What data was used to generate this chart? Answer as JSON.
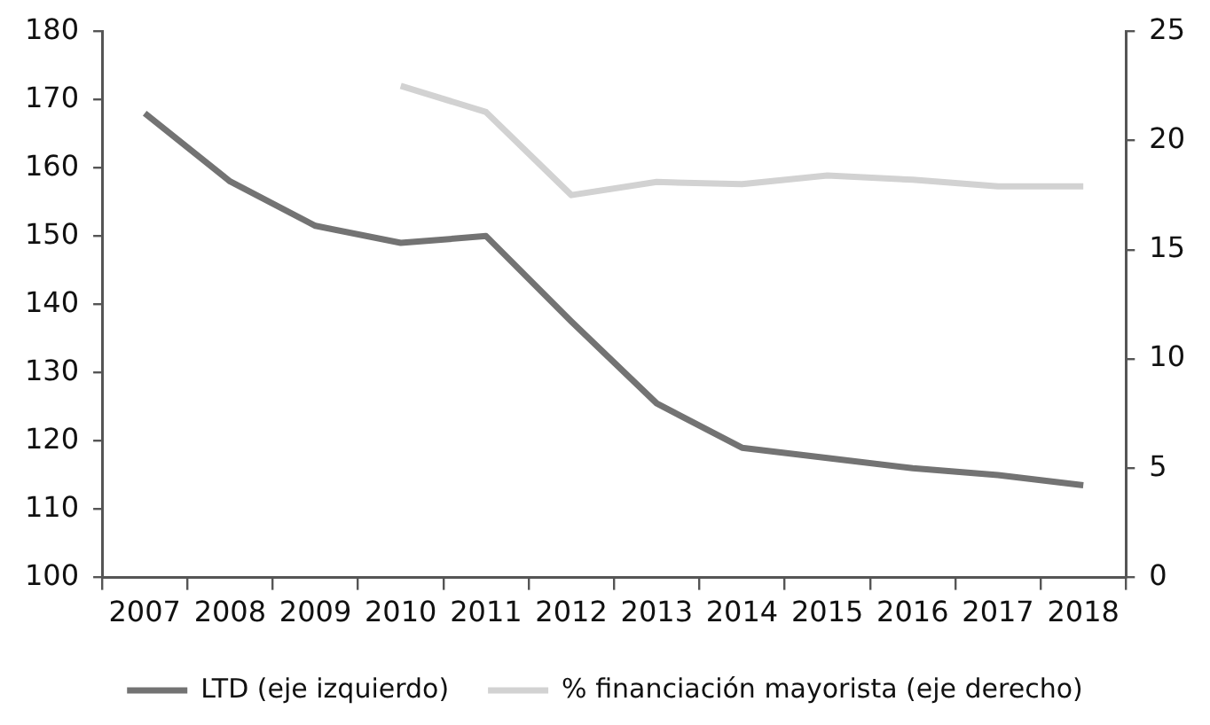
{
  "chart_data": {
    "type": "line",
    "categories": [
      "2007",
      "2008",
      "2009",
      "2010",
      "2011",
      "2012",
      "2013",
      "2014",
      "2015",
      "2016",
      "2017",
      "2018"
    ],
    "series": [
      {
        "name": "LTD (eje izquierdo)",
        "color": "#737373",
        "values": [
          168,
          158,
          151.5,
          149,
          150,
          137.5,
          125.5,
          119,
          117.5,
          116,
          115,
          113.5
        ]
      },
      {
        "name": "% financiación mayorista (eje derecho)",
        "color": "#d2d2d2",
        "axis": "y2",
        "values": [
          null,
          null,
          null,
          22.5,
          21.3,
          17.5,
          18.1,
          18,
          18.4,
          18.2,
          17.9,
          17.9
        ]
      }
    ],
    "ylim": [
      100,
      180
    ],
    "yticks": [
      100,
      110,
      120,
      130,
      140,
      150,
      160,
      170,
      180
    ],
    "y2lim": [
      0,
      25
    ],
    "y2ticks": [
      0,
      5,
      10,
      15,
      20,
      25
    ],
    "grid": false,
    "legend": "bottom",
    "marker": "none",
    "line_style": "solid"
  }
}
